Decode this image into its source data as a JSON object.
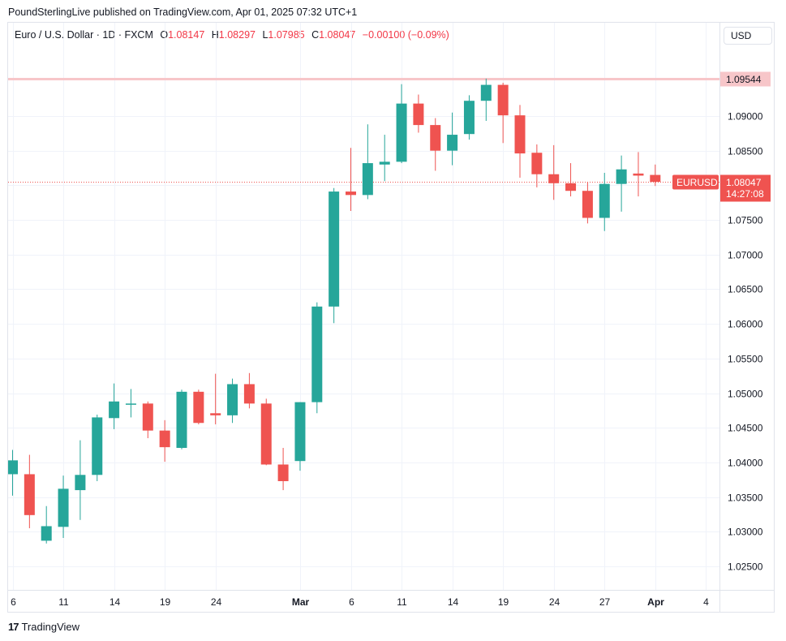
{
  "header": {
    "published_line": "PoundSterlingLive published on TradingView.com, Apr 01, 2025 07:32 UTC+1"
  },
  "legend": {
    "instrument": "Euro / U.S. Dollar · 1D · FXCM",
    "open_label": "O",
    "open": "1.08147",
    "high_label": "H",
    "high": "1.08297",
    "low_label": "L",
    "low": "1.07985",
    "close_label": "C",
    "close": "1.08047",
    "change": "−0.00100 (−0.09%)"
  },
  "currency_button": "USD",
  "footer": {
    "logo": "17",
    "brand": "TradingView"
  },
  "colors": {
    "up": "#26a69a",
    "down": "#ef5350",
    "resistance": "#f7c6c9",
    "price_line": "#ef5350"
  },
  "chart_data": {
    "type": "candlestick",
    "symbol": "EURUSD",
    "ylim": [
      1.0205,
      1.1015
    ],
    "y_ticks": [
      "1.02500",
      "1.03000",
      "1.03500",
      "1.04000",
      "1.04500",
      "1.05000",
      "1.05500",
      "1.06000",
      "1.06500",
      "1.07000",
      "1.07500",
      "1.08000",
      "1.08500",
      "1.09000"
    ],
    "x_ticks": [
      {
        "label": "6",
        "i": 0,
        "bold": false
      },
      {
        "label": "11",
        "i": 3,
        "bold": false
      },
      {
        "label": "14",
        "i": 6,
        "bold": false
      },
      {
        "label": "19",
        "i": 9,
        "bold": false
      },
      {
        "label": "24",
        "i": 12,
        "bold": false
      },
      {
        "label": "Mar",
        "i": 17,
        "bold": true
      },
      {
        "label": "6",
        "i": 20,
        "bold": false
      },
      {
        "label": "11",
        "i": 23,
        "bold": false
      },
      {
        "label": "14",
        "i": 26,
        "bold": false
      },
      {
        "label": "19",
        "i": 29,
        "bold": false
      },
      {
        "label": "24",
        "i": 32,
        "bold": false
      },
      {
        "label": "27",
        "i": 35,
        "bold": false
      },
      {
        "label": "Apr",
        "i": 38,
        "bold": true
      },
      {
        "label": "4",
        "i": 41,
        "bold": false
      }
    ],
    "candles": [
      {
        "date": "Feb 6",
        "o": 1.0383,
        "h": 1.0418,
        "l": 1.0352,
        "c": 1.0403
      },
      {
        "date": "Feb 7",
        "o": 1.0383,
        "h": 1.0411,
        "l": 1.0305,
        "c": 1.0324
      },
      {
        "date": "Feb 10",
        "o": 1.0287,
        "h": 1.0337,
        "l": 1.0283,
        "c": 1.0308
      },
      {
        "date": "Feb 11",
        "o": 1.0307,
        "h": 1.0381,
        "l": 1.0291,
        "c": 1.0362
      },
      {
        "date": "Feb 12",
        "o": 1.036,
        "h": 1.0432,
        "l": 1.0317,
        "c": 1.0382
      },
      {
        "date": "Feb 13",
        "o": 1.0382,
        "h": 1.0469,
        "l": 1.0373,
        "c": 1.0465
      },
      {
        "date": "Feb 14",
        "o": 1.0464,
        "h": 1.0514,
        "l": 1.0448,
        "c": 1.0488
      },
      {
        "date": "Feb 17",
        "o": 1.0484,
        "h": 1.0506,
        "l": 1.0465,
        "c": 1.0485
      },
      {
        "date": "Feb 18",
        "o": 1.0485,
        "h": 1.0488,
        "l": 1.0435,
        "c": 1.0446
      },
      {
        "date": "Feb 19",
        "o": 1.0446,
        "h": 1.0461,
        "l": 1.0401,
        "c": 1.0422
      },
      {
        "date": "Feb 20",
        "o": 1.0421,
        "h": 1.0505,
        "l": 1.0419,
        "c": 1.0502
      },
      {
        "date": "Feb 21",
        "o": 1.0502,
        "h": 1.0505,
        "l": 1.0455,
        "c": 1.0457
      },
      {
        "date": "Feb 24",
        "o": 1.0471,
        "h": 1.0528,
        "l": 1.0455,
        "c": 1.0468
      },
      {
        "date": "Feb 25",
        "o": 1.0468,
        "h": 1.0521,
        "l": 1.0457,
        "c": 1.0513
      },
      {
        "date": "Feb 26",
        "o": 1.0513,
        "h": 1.0529,
        "l": 1.0478,
        "c": 1.0485
      },
      {
        "date": "Feb 27",
        "o": 1.0485,
        "h": 1.0492,
        "l": 1.0396,
        "c": 1.0397
      },
      {
        "date": "Feb 28",
        "o": 1.0397,
        "h": 1.0421,
        "l": 1.036,
        "c": 1.0373
      },
      {
        "date": "Mar 3",
        "o": 1.0402,
        "h": 1.0487,
        "l": 1.0388,
        "c": 1.0487
      },
      {
        "date": "Mar 4",
        "o": 1.0487,
        "h": 1.0631,
        "l": 1.0471,
        "c": 1.0625
      },
      {
        "date": "Mar 5",
        "o": 1.0625,
        "h": 1.0796,
        "l": 1.0601,
        "c": 1.0791
      },
      {
        "date": "Mar 6",
        "o": 1.0791,
        "h": 1.0854,
        "l": 1.0763,
        "c": 1.0786
      },
      {
        "date": "Mar 7",
        "o": 1.0786,
        "h": 1.0888,
        "l": 1.078,
        "c": 1.0832
      },
      {
        "date": "Mar 10",
        "o": 1.083,
        "h": 1.0873,
        "l": 1.0806,
        "c": 1.0834
      },
      {
        "date": "Mar 11",
        "o": 1.0834,
        "h": 1.0946,
        "l": 1.0832,
        "c": 1.0918
      },
      {
        "date": "Mar 12",
        "o": 1.0918,
        "h": 1.0931,
        "l": 1.0876,
        "c": 1.0887
      },
      {
        "date": "Mar 13",
        "o": 1.0887,
        "h": 1.0897,
        "l": 1.0821,
        "c": 1.085
      },
      {
        "date": "Mar 14",
        "o": 1.085,
        "h": 1.0905,
        "l": 1.0829,
        "c": 1.0873
      },
      {
        "date": "Mar 17",
        "o": 1.0874,
        "h": 1.093,
        "l": 1.0866,
        "c": 1.0922
      },
      {
        "date": "Mar 18",
        "o": 1.0922,
        "h": 1.0954,
        "l": 1.0893,
        "c": 1.0945
      },
      {
        "date": "Mar 19",
        "o": 1.0945,
        "h": 1.0948,
        "l": 1.0861,
        "c": 1.0901
      },
      {
        "date": "Mar 20",
        "o": 1.0901,
        "h": 1.0916,
        "l": 1.0811,
        "c": 1.0846
      },
      {
        "date": "Mar 21",
        "o": 1.0847,
        "h": 1.0859,
        "l": 1.0797,
        "c": 1.0816
      },
      {
        "date": "Mar 24",
        "o": 1.0816,
        "h": 1.0858,
        "l": 1.0779,
        "c": 1.0803
      },
      {
        "date": "Mar 25",
        "o": 1.0803,
        "h": 1.0832,
        "l": 1.0784,
        "c": 1.0792
      },
      {
        "date": "Mar 26",
        "o": 1.0792,
        "h": 1.0804,
        "l": 1.0745,
        "c": 1.0753
      },
      {
        "date": "Mar 27",
        "o": 1.0753,
        "h": 1.0818,
        "l": 1.0734,
        "c": 1.0802
      },
      {
        "date": "Mar 28",
        "o": 1.0802,
        "h": 1.0843,
        "l": 1.0762,
        "c": 1.0823
      },
      {
        "date": "Mar 31",
        "o": 1.0817,
        "h": 1.0848,
        "l": 1.0784,
        "c": 1.0814
      },
      {
        "date": "Apr 1",
        "o": 1.0815,
        "h": 1.083,
        "l": 1.0799,
        "c": 1.0805
      }
    ],
    "resistance_line": {
      "value": 1.09544,
      "label": "1.09544"
    },
    "last_price": {
      "value": 1.08047,
      "label": "1.08047",
      "symbol_tag": "EURUSD",
      "countdown": "14:27:08"
    }
  }
}
